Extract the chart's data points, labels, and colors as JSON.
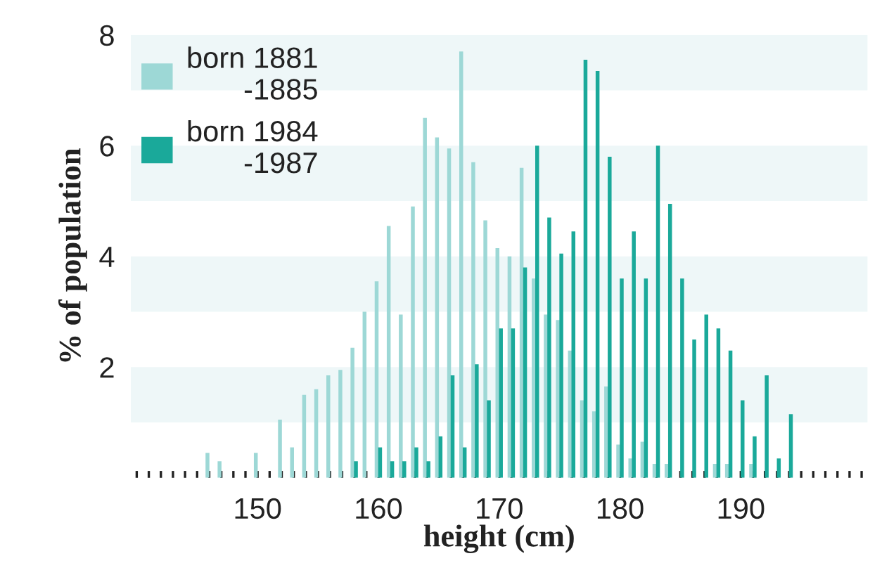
{
  "chart_data": {
    "type": "bar",
    "xlabel": "height (cm)",
    "ylabel": "% of population",
    "x": [
      145,
      146,
      147,
      148,
      149,
      150,
      151,
      152,
      153,
      154,
      155,
      156,
      157,
      158,
      159,
      160,
      161,
      162,
      163,
      164,
      165,
      166,
      167,
      168,
      169,
      170,
      171,
      172,
      173,
      174,
      175,
      176,
      177,
      178,
      179,
      180,
      181,
      182,
      183,
      184,
      185,
      186,
      187,
      188,
      189,
      190,
      191,
      192,
      193,
      194
    ],
    "series": [
      {
        "name": "born 1881\n-1885",
        "color": "#9dd8d6",
        "values": [
          0,
          0.45,
          0.3,
          0,
          0,
          0.45,
          0,
          1.05,
          0.55,
          1.5,
          1.6,
          1.85,
          1.95,
          2.35,
          3.0,
          3.55,
          4.55,
          2.95,
          4.9,
          6.5,
          6.15,
          5.95,
          7.7,
          5.7,
          4.65,
          4.15,
          4.0,
          5.6,
          3.6,
          2.95,
          2.85,
          2.3,
          1.4,
          1.2,
          1.65,
          0.6,
          0.35,
          0.65,
          0.25,
          0.25,
          0,
          0,
          0,
          0.25,
          0.25,
          0,
          0.25,
          0,
          0,
          0
        ]
      },
      {
        "name": "born 1984\n-1987",
        "color": "#1aa99a",
        "values": [
          0,
          0,
          0,
          0,
          0,
          0,
          0,
          0,
          0,
          0,
          0,
          0,
          0,
          0.3,
          0,
          0.55,
          0.3,
          0.3,
          0.55,
          0.3,
          0.75,
          1.85,
          0.55,
          2.05,
          1.4,
          2.7,
          2.7,
          3.8,
          6.0,
          4.7,
          4.05,
          4.45,
          7.55,
          7.35,
          5.8,
          3.6,
          4.45,
          3.6,
          6.0,
          4.95,
          3.6,
          2.5,
          2.95,
          2.7,
          2.3,
          1.4,
          0.75,
          1.85,
          0.35,
          1.15
        ]
      }
    ],
    "xlim": [
      139.5,
      200.5
    ],
    "xticks": [
      {
        "value": 140,
        "label": null
      },
      {
        "value": 141,
        "label": null
      },
      {
        "value": 142,
        "label": null
      },
      {
        "value": 143,
        "label": null
      },
      {
        "value": 144,
        "label": null
      },
      {
        "value": 145,
        "label": null
      },
      {
        "value": 146,
        "label": null
      },
      {
        "value": 147,
        "label": null
      },
      {
        "value": 148,
        "label": null
      },
      {
        "value": 149,
        "label": null
      },
      150,
      {
        "value": 151,
        "label": null
      },
      {
        "value": 152,
        "label": null
      },
      {
        "value": 153,
        "label": null
      },
      {
        "value": 154,
        "label": null
      },
      {
        "value": 155,
        "label": null
      },
      {
        "value": 156,
        "label": null
      },
      {
        "value": 157,
        "label": null
      },
      {
        "value": 158,
        "label": null
      },
      {
        "value": 159,
        "label": null
      },
      160,
      {
        "value": 161,
        "label": null
      },
      {
        "value": 162,
        "label": null
      },
      {
        "value": 163,
        "label": null
      },
      {
        "value": 164,
        "label": null
      },
      {
        "value": 165,
        "label": null
      },
      {
        "value": 166,
        "label": null
      },
      {
        "value": 167,
        "label": null
      },
      {
        "value": 168,
        "label": null
      },
      {
        "value": 169,
        "label": null
      },
      170,
      {
        "value": 171,
        "label": null
      },
      {
        "value": 172,
        "label": null
      },
      {
        "value": 173,
        "label": null
      },
      {
        "value": 174,
        "label": null
      },
      {
        "value": 175,
        "label": null
      },
      {
        "value": 176,
        "label": null
      },
      {
        "value": 177,
        "label": null
      },
      {
        "value": 178,
        "label": null
      },
      {
        "value": 179,
        "label": null
      },
      180,
      {
        "value": 181,
        "label": null
      },
      {
        "value": 182,
        "label": null
      },
      {
        "value": 183,
        "label": null
      },
      {
        "value": 184,
        "label": null
      },
      {
        "value": 185,
        "label": null
      },
      {
        "value": 186,
        "label": null
      },
      {
        "value": 187,
        "label": null
      },
      {
        "value": 188,
        "label": null
      },
      {
        "value": 189,
        "label": null
      },
      190,
      {
        "value": 191,
        "label": null
      },
      {
        "value": 192,
        "label": null
      },
      {
        "value": 193,
        "label": null
      },
      {
        "value": 194,
        "label": null
      },
      {
        "value": 195,
        "label": null
      },
      {
        "value": 196,
        "label": null
      },
      {
        "value": 197,
        "label": null
      },
      {
        "value": 198,
        "label": null
      },
      {
        "value": 199,
        "label": null
      },
      {
        "value": 200,
        "label": null
      }
    ],
    "ylim": [
      0,
      8
    ],
    "yticks": [
      2,
      4,
      6,
      8
    ],
    "bands": [
      {
        "axis": "y",
        "from": 1,
        "to": 2,
        "color": "#eef7f8"
      },
      {
        "axis": "y",
        "from": 3,
        "to": 4,
        "color": "#eef7f8"
      },
      {
        "axis": "y",
        "from": 5,
        "to": 6,
        "color": "#eef7f8"
      },
      {
        "axis": "y",
        "from": 7,
        "to": 8,
        "color": "#eef7f8"
      }
    ],
    "grid": false,
    "legend": "top left"
  }
}
